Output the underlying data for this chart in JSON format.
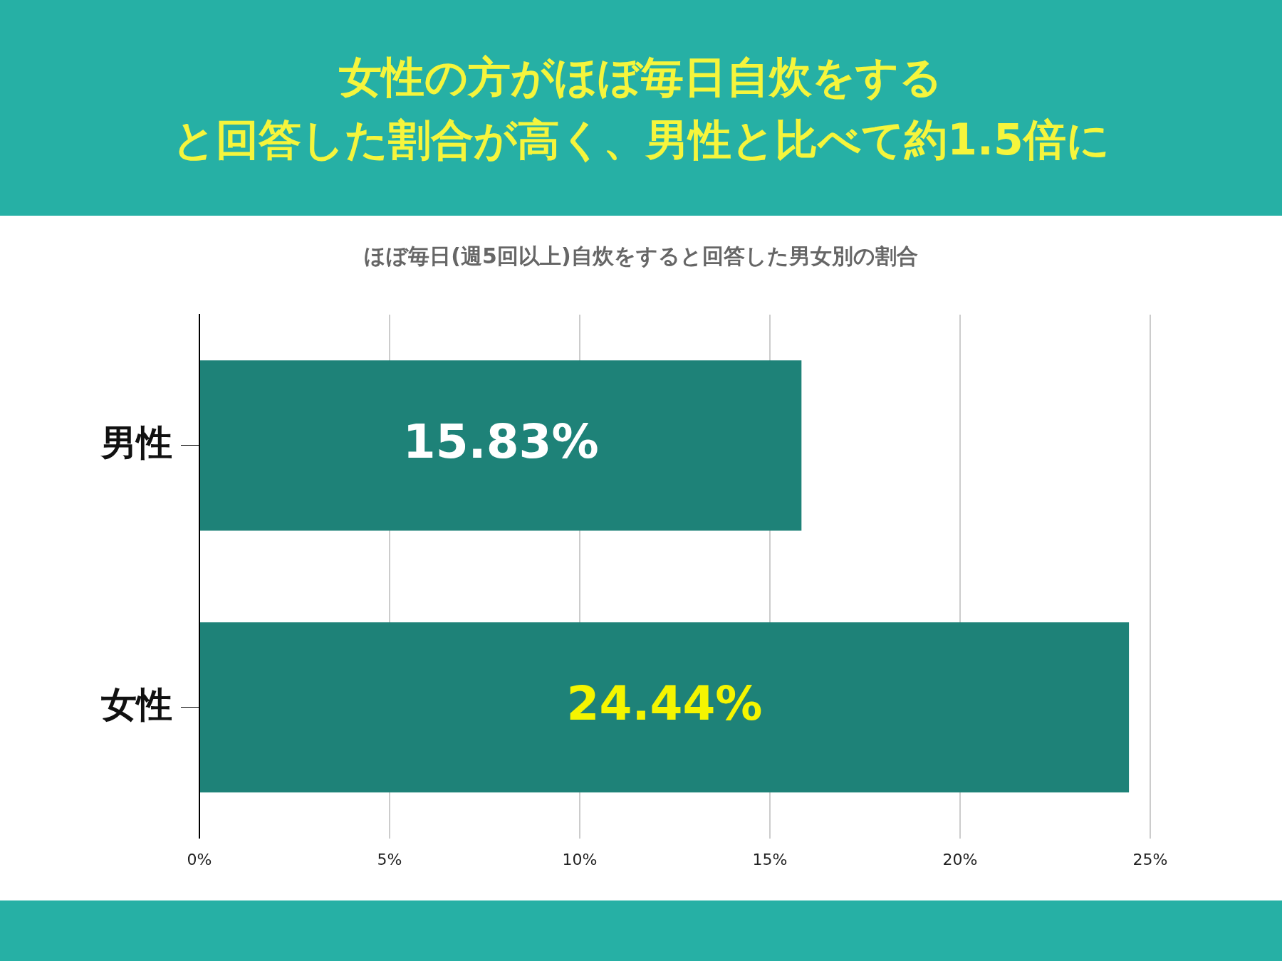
{
  "chart_data": {
    "type": "bar",
    "orientation": "horizontal",
    "title": "女性の方がほぼ毎日自炊をする",
    "subtitle": "と回答した割合が高く、男性と比べて約1.5倍に",
    "annotations": [
      "ほぼ毎日(週5回以上)自炊をすると回答した男女別の割合"
    ],
    "categories": [
      "男性",
      "女性"
    ],
    "values": [
      15.83,
      24.44
    ],
    "color": "#1e8278",
    "value_labels": [
      "15.83%",
      "24.44%"
    ],
    "xlim": [
      0,
      25
    ],
    "xticks": [
      {
        "value": 0,
        "label": "0%"
      },
      {
        "value": 5,
        "label": "5%"
      },
      {
        "value": 10,
        "label": "10%"
      },
      {
        "value": 15,
        "label": "15%"
      },
      {
        "value": 20,
        "label": "20%"
      },
      {
        "value": 25,
        "label": "25%"
      }
    ],
    "grid": "x",
    "legend": false
  }
}
